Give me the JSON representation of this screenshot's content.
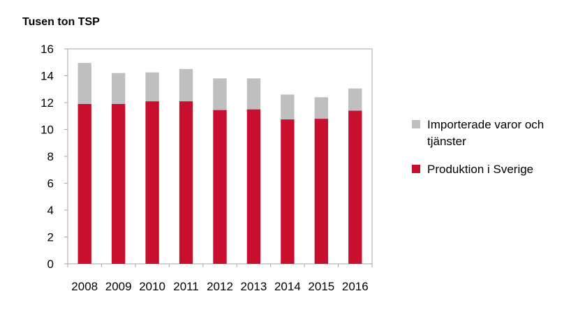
{
  "chart_data": {
    "type": "bar",
    "stacked": true,
    "title": "",
    "ylabel": "Tusen ton TSP",
    "xlabel": "",
    "ylim": [
      0,
      16
    ],
    "yticks": [
      0,
      2,
      4,
      6,
      8,
      10,
      12,
      14,
      16
    ],
    "categories": [
      "2008",
      "2009",
      "2010",
      "2011",
      "2012",
      "2013",
      "2014",
      "2015",
      "2016"
    ],
    "series": [
      {
        "name": "Produktion i Sverige",
        "color": "#c8102e",
        "values": [
          11.9,
          11.9,
          12.1,
          12.1,
          11.45,
          11.5,
          10.75,
          10.8,
          11.4
        ]
      },
      {
        "name": "Importerade varor och tjänster",
        "color": "#bfbfbf",
        "values": [
          3.05,
          2.3,
          2.15,
          2.4,
          2.35,
          2.3,
          1.85,
          1.6,
          1.65
        ]
      }
    ],
    "legend": {
      "placement": "right",
      "entries": [
        {
          "series": 1,
          "lines": [
            "Importerade varor och",
            "tjänster"
          ]
        },
        {
          "series": 0,
          "lines": [
            "Produktion i Sverige"
          ]
        }
      ]
    }
  }
}
